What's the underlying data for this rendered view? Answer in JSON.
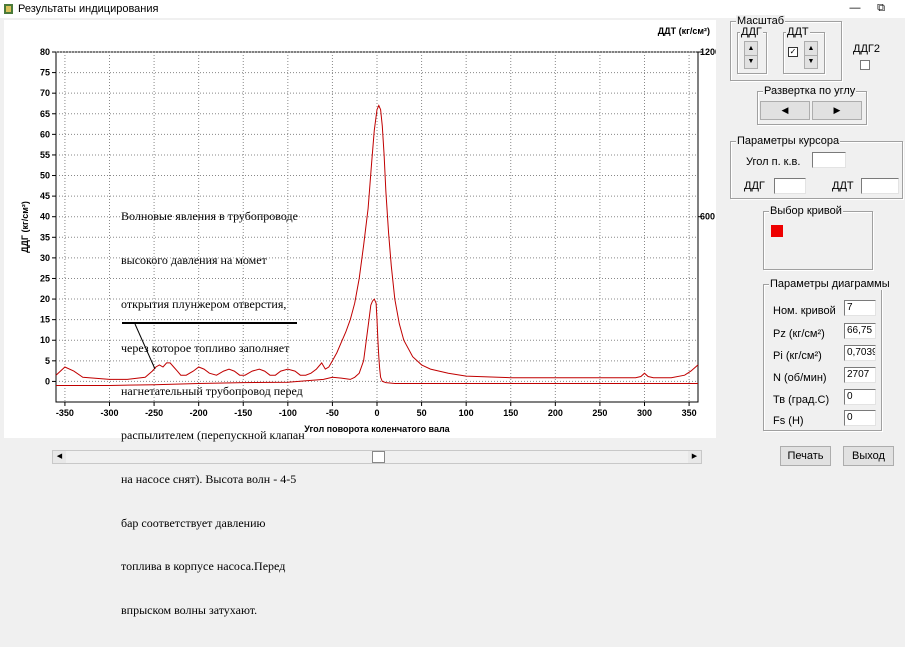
{
  "window": {
    "title": "Результаты индицирования",
    "restore_glyph": "⧉",
    "minimize_glyph": "—"
  },
  "chart_data": {
    "type": "line",
    "xlabel": "Угол поворота коленчатого вала",
    "ylabel_left": "ДДГ (кг/см²)",
    "ylabel_right": "ДДТ (кг/см²)",
    "xlim": [
      -360,
      360
    ],
    "ylim": [
      -5,
      80
    ],
    "x_ticks": [
      -350,
      -300,
      -250,
      -200,
      -150,
      -100,
      -50,
      0,
      50,
      100,
      150,
      200,
      250,
      300,
      350
    ],
    "y_ticks": [
      0,
      5,
      10,
      15,
      20,
      25,
      30,
      35,
      40,
      45,
      50,
      55,
      60,
      65,
      70,
      75,
      80
    ],
    "right_ticks": [
      {
        "value": 1200,
        "y": 80
      },
      {
        "value": 600,
        "y": 40
      }
    ],
    "grid": true,
    "series": [
      {
        "color": "#c00000",
        "x": [
          -360,
          -350,
          -340,
          -330,
          -300,
          -280,
          -260,
          -252,
          -248,
          -244,
          -240,
          -236,
          -232,
          -228,
          -224,
          -220,
          -214,
          -206,
          -200,
          -194,
          -188,
          -180,
          -172,
          -166,
          -160,
          -154,
          -148,
          -140,
          -132,
          -126,
          -120,
          -114,
          -108,
          -100,
          -92,
          -86,
          -80,
          -74,
          -68,
          -62,
          -58,
          -54,
          -50,
          -45,
          -40,
          -35,
          -30,
          -25,
          -20,
          -15,
          -10,
          -6,
          -3,
          0,
          2,
          4,
          6,
          8,
          10,
          13,
          16,
          20,
          25,
          30,
          40,
          50,
          60,
          80,
          100,
          150,
          200,
          250,
          290,
          296,
          300,
          304,
          310,
          330,
          345,
          352,
          360
        ],
        "y": [
          1.5,
          3.5,
          2.5,
          1,
          0.5,
          0.5,
          1,
          2.5,
          3.5,
          4,
          3.5,
          4.5,
          4.5,
          3.5,
          2.5,
          1.5,
          1.5,
          2.5,
          3.5,
          3,
          2,
          1.5,
          2.5,
          3,
          2.5,
          1.5,
          1.5,
          2.5,
          3,
          2.5,
          1.5,
          1.5,
          2.5,
          3,
          2.5,
          1.5,
          1.5,
          2,
          3,
          4.5,
          3,
          3.5,
          5,
          7,
          9.5,
          12,
          15,
          19,
          25,
          33,
          42,
          53,
          61,
          66,
          67,
          66,
          62,
          55,
          46,
          36,
          28,
          20,
          14,
          10,
          6,
          4,
          3,
          2,
          1.3,
          0.9,
          0.9,
          0.9,
          0.9,
          1.2,
          2,
          1.2,
          0.9,
          0.9,
          1.5,
          2.5,
          4
        ]
      },
      {
        "color": "#c00000",
        "x": [
          -360,
          -300,
          -250,
          -200,
          -150,
          -100,
          -60,
          -50,
          -40,
          -30,
          -25,
          -20,
          -15,
          -12,
          -9,
          -7,
          -5,
          -3,
          -1,
          0,
          1,
          2,
          3,
          4,
          6,
          10,
          20,
          40,
          80,
          200,
          360
        ],
        "y": [
          -1,
          -1,
          -0.8,
          -0.5,
          -0.3,
          -0.2,
          0.5,
          1,
          0.8,
          0.5,
          1,
          2,
          5,
          10,
          15,
          18.5,
          19.5,
          20,
          19,
          15,
          10,
          6,
          3,
          1,
          0,
          -0.3,
          -0.5,
          -0.5,
          -0.5,
          -0.5,
          -0.5
        ]
      }
    ]
  },
  "annotation": {
    "lines": [
      "Волновые явления в трубопроводе",
      "высокого давления на момет",
      "открытия плунжером отверстия,",
      "через которое топливо заполняет",
      "нагнетательный трубопровод перед",
      "распылителем (перепускной клапан",
      "на насосе снят). Высота волн - 4-5",
      "бар соответствует давлению",
      "топлива в корпусе насоса.Перед",
      "впрыском волны затухают."
    ]
  },
  "scale": {
    "title": "Масштаб",
    "ddg_label": "ДДГ",
    "ddt_label": "ДДТ",
    "ddt_checked": true,
    "ddg2_label": "ДДГ2",
    "ddg2_checked": false
  },
  "sweep": {
    "title": "Развертка по углу",
    "left_glyph": "◀",
    "right_glyph": "▶"
  },
  "cursor": {
    "title": "Параметры курсора",
    "angle_label": "Угол п. к.в.",
    "angle_value": "",
    "ddg_label": "ДДГ",
    "ddg_value": "",
    "ddt_label": "ДДТ",
    "ddt_value": ""
  },
  "curve_select": {
    "title": "Выбор кривой",
    "color": "#ee0000"
  },
  "diagram": {
    "title": "Параметры диаграммы",
    "rows": [
      {
        "label": "Ном. кривой",
        "value": "7"
      },
      {
        "label": "Pz (кг/см²)",
        "value": "66,75"
      },
      {
        "label": "Pi (кг/см²)",
        "value": "0,7039"
      },
      {
        "label": "N (об/мин)",
        "value": "2707"
      },
      {
        "label": "Тв (град.С)",
        "value": "0"
      },
      {
        "label": "Fs (H)",
        "value": "0"
      }
    ]
  },
  "buttons": {
    "print": "Печать",
    "exit": "Выход"
  },
  "scrollbar": {
    "left_glyph": "◀",
    "right_glyph": "▶"
  }
}
